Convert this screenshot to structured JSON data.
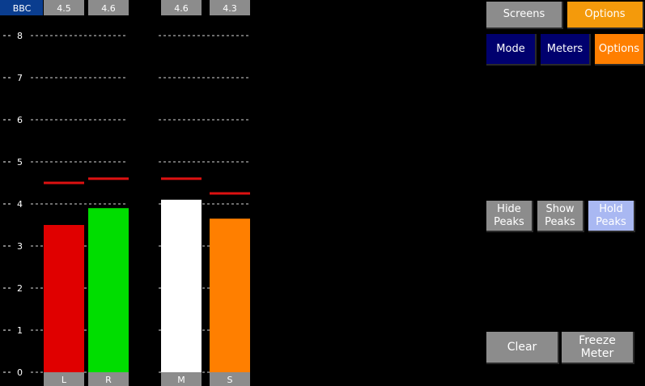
{
  "meter": {
    "scale_name": "BBC",
    "y_ticks": [
      "0",
      "1",
      "2",
      "3",
      "4",
      "5",
      "6",
      "7",
      "8"
    ],
    "ylim": [
      0,
      8.3
    ],
    "channels": [
      {
        "label": "L",
        "value": 3.5,
        "peak": 4.5,
        "peak_readout": "4.5",
        "color": "#e00000"
      },
      {
        "label": "R",
        "value": 3.9,
        "peak": 4.6,
        "peak_readout": "4.6",
        "color": "#00dd00"
      },
      {
        "label": "M",
        "value": 4.1,
        "peak": 4.6,
        "peak_readout": "4.6",
        "color": "#ffffff"
      },
      {
        "label": "S",
        "value": 3.65,
        "peak": 4.25,
        "peak_readout": "4.3",
        "color": "#ff7f00"
      }
    ],
    "peak_color": "#dd1111",
    "label_box_color": "#8c8c8c",
    "scale_box_color": "#0a3d8f"
  },
  "nav": {
    "screens": "Screens",
    "options": "Options"
  },
  "subnav": {
    "mode": "Mode",
    "meters": "Meters",
    "options": "Options"
  },
  "peaks": {
    "hide": "Hide\nPeaks",
    "show": "Show\nPeaks",
    "hold": "Hold\nPeaks"
  },
  "actions": {
    "clear": "Clear",
    "freeze": "Freeze Meter"
  }
}
